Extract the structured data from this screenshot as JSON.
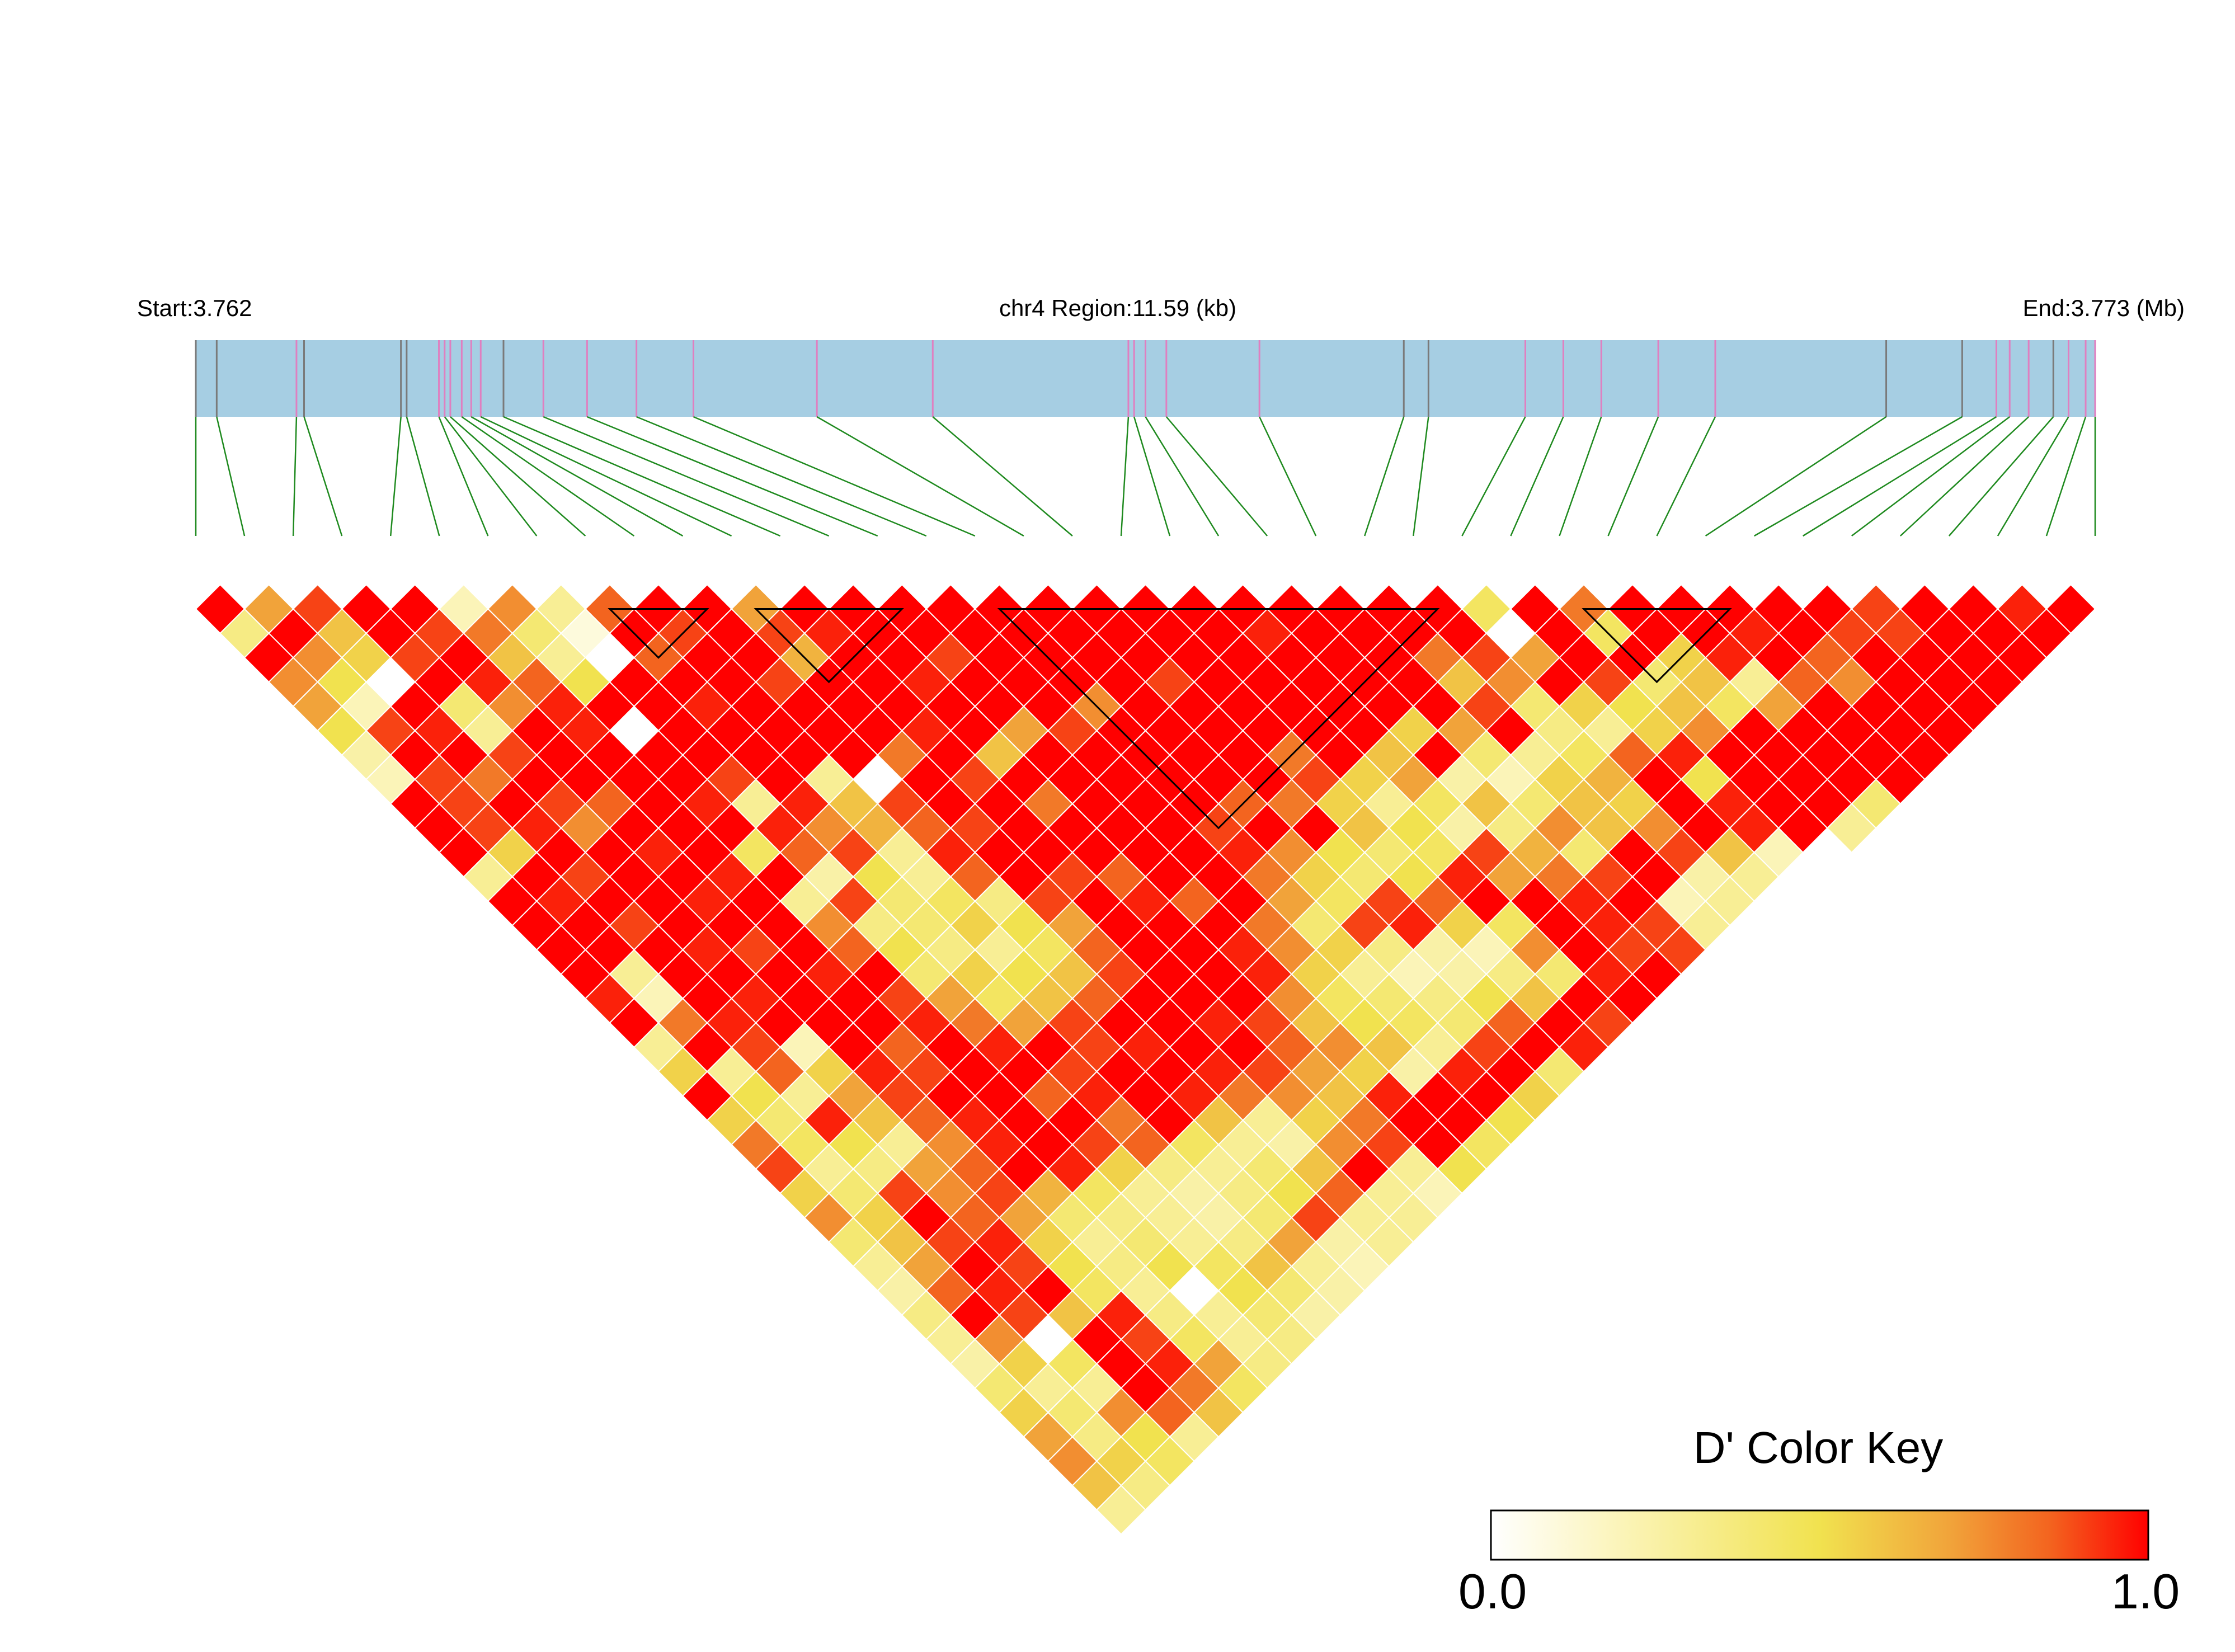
{
  "header": {
    "start_label": "Start:3.762",
    "region_label": "chr4 Region:11.59 (kb)",
    "end_label": "End:3.773 (Mb)"
  },
  "legend": {
    "title": "D' Color Key",
    "min_label": "0.0",
    "max_label": "1.0",
    "colors": [
      "#ffffff",
      "#fbf4b8",
      "#f1e24f",
      "#f1a33a",
      "#f3641f",
      "#ff0000"
    ]
  },
  "colors": {
    "track_fill": "#a6cee3",
    "snp_marker_gray": "#7a7a7a",
    "snp_marker_pink": "#e07fc0",
    "connector_green": "#1f8a1f",
    "cell_border": "#ffffff",
    "block_outline": "#000000"
  },
  "chart_data": {
    "type": "heatmap",
    "title": "",
    "region": "chr4",
    "start_mb": 3.762,
    "end_mb": 3.773,
    "region_kb": 11.59,
    "n_snps": 40,
    "value_range": [
      0,
      1
    ],
    "snp_positions_frac": [
      0.0,
      0.011,
      0.053,
      0.057,
      0.108,
      0.111,
      0.128,
      0.131,
      0.134,
      0.14,
      0.145,
      0.15,
      0.162,
      0.183,
      0.206,
      0.232,
      0.262,
      0.327,
      0.388,
      0.491,
      0.494,
      0.5,
      0.511,
      0.56,
      0.636,
      0.649,
      0.7,
      0.72,
      0.74,
      0.77,
      0.8,
      0.89,
      0.93,
      0.948,
      0.955,
      0.965,
      0.978,
      0.986,
      0.995,
      1.0
    ],
    "snp_marker_color": [
      "gray",
      "gray",
      "pink",
      "gray",
      "gray",
      "gray",
      "pink",
      "pink",
      "pink",
      "pink",
      "pink",
      "pink",
      "gray",
      "pink",
      "pink",
      "pink",
      "pink",
      "pink",
      "pink",
      "pink",
      "pink",
      "pink",
      "pink",
      "pink",
      "gray",
      "gray",
      "pink",
      "pink",
      "pink",
      "pink",
      "pink",
      "gray",
      "gray",
      "pink",
      "pink",
      "pink",
      "gray",
      "pink",
      "pink",
      "pink"
    ],
    "ld_blocks": [
      [
        2,
        3
      ],
      [
        8,
        11
      ],
      [
        11,
        15
      ],
      [
        16,
        26
      ],
      [
        28,
        32
      ],
      [
        36,
        37
      ],
      [
        38,
        39
      ]
    ],
    "dprime_rows": [
      [
        1.0,
        0.7,
        0.9,
        1.0,
        1.0,
        0.2,
        0.75,
        0.3,
        0.85,
        1.0,
        1.0,
        0.7,
        1.0,
        1.0,
        1.0,
        1.0,
        1.0,
        1.0,
        1.0,
        1.0,
        1.0,
        1.0,
        1.0,
        1.0,
        1.0,
        1.0,
        0.45,
        1.0,
        0.8,
        1.0,
        1.0,
        1.0,
        1.0,
        1.0,
        0.9,
        1.0,
        1.0,
        0.95,
        1.0
      ],
      [
        0.35,
        1.0,
        0.6,
        1.0,
        0.9,
        0.8,
        0.4,
        0.1,
        1.0,
        0.9,
        1.0,
        0.9,
        0.95,
        1.0,
        1.0,
        1.0,
        1.0,
        1.0,
        1.0,
        1.0,
        1.0,
        0.95,
        1.0,
        1.0,
        1.0,
        1.0,
        0.0,
        1.0,
        0.45,
        1.0,
        1.0,
        0.95,
        1.0,
        0.9,
        0.9,
        1.0,
        1.0,
        1.0
      ],
      [
        1.0,
        0.75,
        0.55,
        0.9,
        1.0,
        0.6,
        0.3,
        0.0,
        0.85,
        1.0,
        1.0,
        0.65,
        1.0,
        1.0,
        0.9,
        1.0,
        1.0,
        1.0,
        1.0,
        1.0,
        1.0,
        1.0,
        1.0,
        1.0,
        0.8,
        0.9,
        0.7,
        1.0,
        1.0,
        0.55,
        0.95,
        1.0,
        0.85,
        1.0,
        1.0,
        1.0,
        1.0
      ],
      [
        0.75,
        0.5,
        0.0,
        1.0,
        0.95,
        0.85,
        0.5,
        1.0,
        1.0,
        1.0,
        0.9,
        1.0,
        1.0,
        0.95,
        1.0,
        1.0,
        1.0,
        1.0,
        0.9,
        1.0,
        1.0,
        1.0,
        1.0,
        1.0,
        0.6,
        0.75,
        1.0,
        0.9,
        0.4,
        0.6,
        0.3,
        0.85,
        0.75,
        1.0,
        1.0,
        1.0
      ],
      [
        0.7,
        0.2,
        1.0,
        0.4,
        0.75,
        0.95,
        1.0,
        1.0,
        0.95,
        1.0,
        1.0,
        1.0,
        1.0,
        1.0,
        1.0,
        1.0,
        0.75,
        1.0,
        1.0,
        1.0,
        1.0,
        1.0,
        1.0,
        1.0,
        0.9,
        0.4,
        0.55,
        0.5,
        0.6,
        0.45,
        0.7,
        1.0,
        1.0,
        1.0,
        1.0
      ],
      [
        0.5,
        0.9,
        0.95,
        0.3,
        1.0,
        0.95,
        0.0,
        1.0,
        1.0,
        1.0,
        1.0,
        1.0,
        0.95,
        1.0,
        0.7,
        0.9,
        1.0,
        1.0,
        1.0,
        1.0,
        1.0,
        1.0,
        0.55,
        0.7,
        1.0,
        0.35,
        0.3,
        0.55,
        0.75,
        1.0,
        1.0,
        1.0,
        1.0,
        1.0
      ],
      [
        0.25,
        1.0,
        1.0,
        0.9,
        1.0,
        1.0,
        1.0,
        1.0,
        1.0,
        1.0,
        1.0,
        0.8,
        1.0,
        0.6,
        1.0,
        1.0,
        1.0,
        1.0,
        1.0,
        0.8,
        1.0,
        0.6,
        1.0,
        0.4,
        0.3,
        0.45,
        0.85,
        0.95,
        1.0,
        1.0,
        1.0,
        1.0,
        1.0
      ],
      [
        0.2,
        0.9,
        0.8,
        1.0,
        1.0,
        1.0,
        1.0,
        0.9,
        1.0,
        0.3,
        0.0,
        1.0,
        0.9,
        1.0,
        1.0,
        1.0,
        1.0,
        1.0,
        1.0,
        0.9,
        0.55,
        0.7,
        0.25,
        0.2,
        0.55,
        0.65,
        1.0,
        0.5,
        1.0,
        1.0,
        1.0,
        1.0
      ],
      [
        1.0,
        0.9,
        1.0,
        0.9,
        0.85,
        1.0,
        0.95,
        0.3,
        0.95,
        0.6,
        0.9,
        1.0,
        1.0,
        0.8,
        1.0,
        1.0,
        1.0,
        0.85,
        0.8,
        0.55,
        0.3,
        0.45,
        0.6,
        0.4,
        0.6,
        0.55,
        1.0,
        0.95,
        1.0,
        1.0,
        0.4
      ],
      [
        1.0,
        0.9,
        0.95,
        0.75,
        1.0,
        1.0,
        1.0,
        0.95,
        0.75,
        0.65,
        0.85,
        0.9,
        1.0,
        1.0,
        1.0,
        1.0,
        0.9,
        1.0,
        1.0,
        0.6,
        0.5,
        0.25,
        0.35,
        0.75,
        0.6,
        0.75,
        1.0,
        0.95,
        1.0,
        0.3
      ],
      [
        1.0,
        0.55,
        1.0,
        1.0,
        0.95,
        1.0,
        0.45,
        0.85,
        0.9,
        0.3,
        0.95,
        1.0,
        1.0,
        1.0,
        1.0,
        1.0,
        0.95,
        0.75,
        0.5,
        0.4,
        0.45,
        0.9,
        0.65,
        0.4,
        1.0,
        0.9,
        0.6,
        0.2
      ],
      [
        0.3,
        1.0,
        0.9,
        1.0,
        1.0,
        0.95,
        1.0,
        0.25,
        0.5,
        0.3,
        0.85,
        1.0,
        0.9,
        0.85,
        1.0,
        1.0,
        0.8,
        0.55,
        0.4,
        0.5,
        0.95,
        0.7,
        0.8,
        0.9,
        1.0,
        0.25,
        0.3
      ],
      [
        1.0,
        0.95,
        1.0,
        1.0,
        0.95,
        1.0,
        0.3,
        0.9,
        0.4,
        0.45,
        0.35,
        0.9,
        1.0,
        0.95,
        0.85,
        1.0,
        0.7,
        0.45,
        0.9,
        0.85,
        1.0,
        1.0,
        0.95,
        1.0,
        0.2,
        0.3
      ],
      [
        1.0,
        1.0,
        0.9,
        1.0,
        1.0,
        1.0,
        0.75,
        0.35,
        0.4,
        0.55,
        0.5,
        0.7,
        1.0,
        1.0,
        1.0,
        0.8,
        0.4,
        0.9,
        0.95,
        0.55,
        0.45,
        1.0,
        0.95,
        0.9,
        0.3
      ],
      [
        1.0,
        1.0,
        1.0,
        0.95,
        0.9,
        1.0,
        0.85,
        0.5,
        0.35,
        0.3,
        0.45,
        0.85,
        1.0,
        1.0,
        0.95,
        0.75,
        0.55,
        0.35,
        0.25,
        0.2,
        0.75,
        1.0,
        0.9,
        0.9
      ],
      [
        1.0,
        0.3,
        1.0,
        1.0,
        1.0,
        0.95,
        1.0,
        0.4,
        0.55,
        0.5,
        0.6,
        0.9,
        1.0,
        1.0,
        0.95,
        0.55,
        0.3,
        0.2,
        0.25,
        0.35,
        0.4,
        0.95,
        1.0
      ],
      [
        0.95,
        0.2,
        1.0,
        0.95,
        1.0,
        1.0,
        0.9,
        0.7,
        0.45,
        0.6,
        0.85,
        1.0,
        1.0,
        1.0,
        0.75,
        0.45,
        0.4,
        0.35,
        0.5,
        0.6,
        1.0,
        1.0
      ],
      [
        1.0,
        0.8,
        0.95,
        1.0,
        1.0,
        1.0,
        0.95,
        0.8,
        0.7,
        0.9,
        1.0,
        1.0,
        0.95,
        0.9,
        0.6,
        0.5,
        0.45,
        0.4,
        0.85,
        1.0,
        0.9
      ],
      [
        0.3,
        1.0,
        0.9,
        0.2,
        1.0,
        0.85,
        1.0,
        0.95,
        1.0,
        0.9,
        0.95,
        1.0,
        1.0,
        0.85,
        0.75,
        0.6,
        0.3,
        0.9,
        1.0,
        0.95
      ],
      [
        0.55,
        0.3,
        0.85,
        0.55,
        0.95,
        0.9,
        1.0,
        1.0,
        0.9,
        1.0,
        1.0,
        0.95,
        0.9,
        0.7,
        0.55,
        0.25,
        0.95,
        1.0,
        0.4
      ],
      [
        1.0,
        0.5,
        0.3,
        0.7,
        0.9,
        1.0,
        1.0,
        0.85,
        0.95,
        1.0,
        0.95,
        0.8,
        0.75,
        0.6,
        0.95,
        1.0,
        1.0,
        0.55
      ],
      [
        0.55,
        0.4,
        0.95,
        0.6,
        0.85,
        0.95,
        1.0,
        1.0,
        0.8,
        1.0,
        0.6,
        0.3,
        0.55,
        0.8,
        1.0,
        1.0,
        0.5
      ],
      [
        0.8,
        0.45,
        0.5,
        0.3,
        0.75,
        0.95,
        1.0,
        0.9,
        0.85,
        0.45,
        0.3,
        0.25,
        0.75,
        0.9,
        1.0,
        0.45
      ],
      [
        0.9,
        0.3,
        0.35,
        0.7,
        0.85,
        1.0,
        0.95,
        0.55,
        0.35,
        0.3,
        0.4,
        0.6,
        1.0,
        0.3,
        0.5
      ],
      [
        0.55,
        0.4,
        0.9,
        0.75,
        0.9,
        0.65,
        0.45,
        0.3,
        0.25,
        0.35,
        0.5,
        0.85,
        0.3,
        0.2
      ],
      [
        0.75,
        0.55,
        1.0,
        0.85,
        0.7,
        0.4,
        0.35,
        0.3,
        0.25,
        0.4,
        0.9,
        0.3,
        0.3
      ],
      [
        0.4,
        0.6,
        0.9,
        0.95,
        0.55,
        0.3,
        0.4,
        0.3,
        0.35,
        0.7,
        0.25,
        0.3
      ],
      [
        0.3,
        0.7,
        1.0,
        0.9,
        0.5,
        0.35,
        0.5,
        0.45,
        0.6,
        0.3,
        0.2
      ],
      [
        0.25,
        0.85,
        0.95,
        1.0,
        0.45,
        0.3,
        0.0,
        0.5,
        0.4,
        0.25
      ],
      [
        0.35,
        1.0,
        0.9,
        0.6,
        0.95,
        0.35,
        0.3,
        0.4,
        0.25
      ],
      [
        0.3,
        0.75,
        0.0,
        1.0,
        0.9,
        0.45,
        0.3,
        0.35
      ],
      [
        0.25,
        0.55,
        0.45,
        1.0,
        0.95,
        0.7,
        0.35
      ],
      [
        0.4,
        0.3,
        0.3,
        1.0,
        0.8,
        0.45
      ],
      [
        0.55,
        0.4,
        0.75,
        0.85,
        0.6
      ],
      [
        0.7,
        0.35,
        0.5,
        0.3
      ],
      [
        0.75,
        0.55,
        0.45
      ],
      [
        0.6,
        0.35
      ],
      [
        0.3
      ]
    ]
  }
}
